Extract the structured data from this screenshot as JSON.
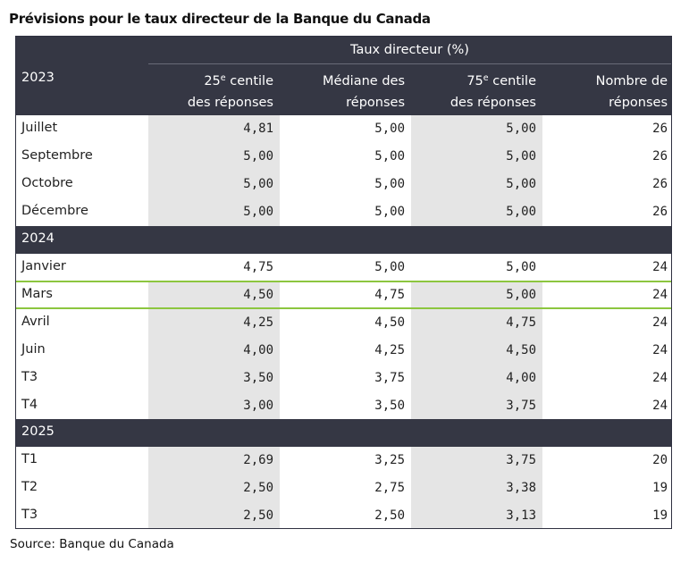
{
  "title": "Prévisions pour le taux directeur de la Banque du Canada",
  "table": {
    "super_header": "Taux directeur (%)",
    "columns": [
      {
        "pre": "25",
        "sup": "e",
        "post": " centile",
        "line2": "des réponses"
      },
      {
        "line1": "Médiane des",
        "line2": "réponses"
      },
      {
        "pre": "75",
        "sup": "e",
        "post": " centile",
        "line2": "des réponses"
      },
      {
        "line1": "Nombre de",
        "line2": "réponses"
      }
    ],
    "groups": [
      {
        "year": "2023",
        "rows": [
          {
            "label": "Juillet",
            "values": [
              "4,81",
              "5,00",
              "5,00",
              "26"
            ]
          },
          {
            "label": "Septembre",
            "values": [
              "5,00",
              "5,00",
              "5,00",
              "26"
            ]
          },
          {
            "label": "Octobre",
            "values": [
              "5,00",
              "5,00",
              "5,00",
              "26"
            ]
          },
          {
            "label": "Décembre",
            "values": [
              "5,00",
              "5,00",
              "5,00",
              "26"
            ]
          }
        ]
      },
      {
        "year": "2024",
        "rows": [
          {
            "label": "Janvier",
            "values": [
              "4,75",
              "5,00",
              "5,00",
              "24"
            ]
          },
          {
            "label": "Mars",
            "values": [
              "4,50",
              "4,75",
              "5,00",
              "24"
            ]
          },
          {
            "label": "Avril",
            "values": [
              "4,25",
              "4,50",
              "4,75",
              "24"
            ]
          },
          {
            "label": "Juin",
            "values": [
              "4,00",
              "4,25",
              "4,50",
              "24"
            ]
          },
          {
            "label": "T3",
            "values": [
              "3,50",
              "3,75",
              "4,00",
              "24"
            ]
          },
          {
            "label": "T4",
            "values": [
              "3,00",
              "3,50",
              "3,75",
              "24"
            ]
          }
        ]
      },
      {
        "year": "2025",
        "rows": [
          {
            "label": "T1",
            "values": [
              "2,69",
              "3,25",
              "3,75",
              "20"
            ]
          },
          {
            "label": "T2",
            "values": [
              "2,50",
              "2,75",
              "3,38",
              "19"
            ]
          },
          {
            "label": "T3",
            "values": [
              "2,50",
              "2,50",
              "3,13",
              "19"
            ]
          }
        ]
      }
    ],
    "highlighted_row": "Mars",
    "highlight_color": "#8cc63f",
    "header_color": "#353744"
  },
  "source": "Source: Banque du Canada"
}
